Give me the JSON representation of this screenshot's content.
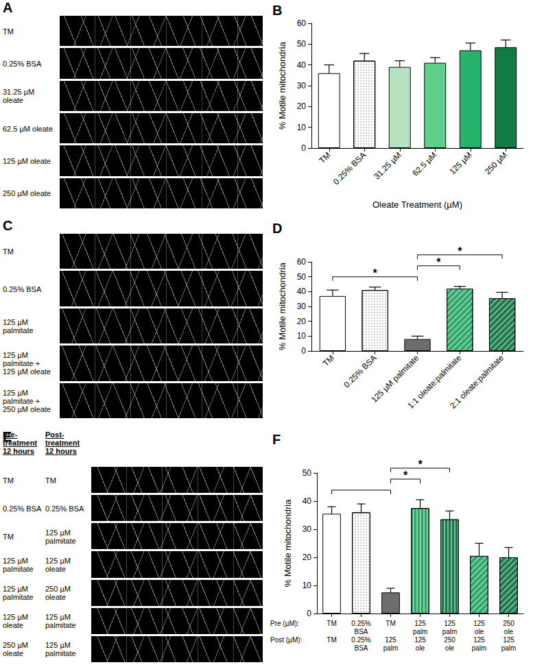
{
  "chart_data": [
    {
      "type": "bar",
      "title": "B",
      "x_label": "Oleate Treatment (µM)",
      "y_label": "% Motile mitochondria",
      "categories": [
        "TM",
        "0.25% BSA",
        "31.25 µM",
        "62.5 µM",
        "125 µM",
        "250 µM"
      ],
      "values": [
        36,
        42,
        39,
        41,
        47,
        48.5
      ],
      "errors": [
        4,
        3.5,
        3,
        2.5,
        3.5,
        3.5
      ],
      "colors": [
        "#ffffff",
        "#ffffff",
        "#b5e3bf",
        "#5fcf8b",
        "#25b36b",
        "#117a45"
      ],
      "ylim": [
        0,
        60
      ],
      "yticks": [
        0,
        10,
        20,
        30,
        40,
        50,
        60
      ]
    },
    {
      "type": "bar",
      "title": "D",
      "y_label": "% Motile mitochondria",
      "categories": [
        "TM",
        "0.25% BSA",
        "125 µM palmitate",
        "1:1 oleate:palmitate",
        "2:1 oleate:palmitate"
      ],
      "values": [
        37,
        41,
        8,
        42,
        35.5
      ],
      "errors": [
        4,
        2,
        2,
        1.5,
        4
      ],
      "colors": [
        "#ffffff",
        "#ffffff",
        "#6d6d6d",
        "#2ea868",
        "#1a7a4a"
      ],
      "ylim": [
        0,
        60
      ],
      "yticks": [
        0,
        10,
        20,
        30,
        40,
        50,
        60
      ],
      "annotations": [
        {
          "from": 0,
          "to": 2,
          "text": "*"
        },
        {
          "from": 2,
          "to": 3,
          "text": "*"
        },
        {
          "from": 2,
          "to": 4,
          "text": "*"
        }
      ]
    },
    {
      "type": "bar",
      "title": "F",
      "y_label": "% Motile mitochondria",
      "row_labels": [
        "Pre (µM):",
        "Post (µM):"
      ],
      "categories": [
        "TM",
        "0.25% BSA",
        "TM",
        "125 palm",
        "125 palm",
        "125 ole",
        "250 ole"
      ],
      "post_categories": [
        "TM",
        "0.25% BSA",
        "125 palm",
        "125 ole",
        "250 ole",
        "125 palm",
        "125 palm"
      ],
      "values": [
        35.5,
        36,
        7.5,
        37.5,
        33.5,
        20.5,
        20
      ],
      "errors": [
        2.5,
        3,
        1.5,
        3,
        3,
        4.5,
        3.5
      ],
      "colors": [
        "#ffffff",
        "#ffffff",
        "#6d6d6d",
        "#2ea868",
        "#1a7a4a",
        "#2ea868",
        "#1a7a4a"
      ],
      "ylim": [
        0,
        50
      ],
      "yticks": [
        0,
        10,
        20,
        30,
        40,
        50
      ],
      "annotations": [
        {
          "from": 0,
          "to": 2
        },
        {
          "from": 2,
          "to": 3,
          "text": "*"
        },
        {
          "from": 2,
          "to": 4,
          "text": "*"
        }
      ]
    }
  ],
  "kymographs": [
    {
      "panel": "A",
      "rows": [
        [
          "TM"
        ],
        [
          "0.25% BSA"
        ],
        [
          "31.25 µM oleate"
        ],
        [
          "62.5 µM oleate"
        ],
        [
          "125 µM oleate"
        ],
        [
          "250 µM oleate"
        ]
      ]
    },
    {
      "panel": "C",
      "rows": [
        [
          "TM"
        ],
        [
          "0.25% BSA"
        ],
        [
          "125 µM palmitate"
        ],
        [
          "125 µM palmitate + 125 µM oleate"
        ],
        [
          "125 µM palmitate + 250 µM oleate"
        ]
      ]
    },
    {
      "panel": "E",
      "headers": [
        "Pre-treatment 12 hours",
        "Post-treatment 12 hours"
      ],
      "rows": [
        [
          "TM",
          "TM"
        ],
        [
          "0.25% BSA",
          "0.25% BSA"
        ],
        [
          "TM",
          "125 µM palmitate"
        ],
        [
          "125 µM palmitate",
          "125 µM oleate"
        ],
        [
          "125 µM palmitate",
          "250 µM oleate"
        ],
        [
          "125 µM oleate",
          "125 µM palmitate"
        ],
        [
          "250 µM oleate",
          "125 µM palmitate"
        ]
      ]
    }
  ]
}
